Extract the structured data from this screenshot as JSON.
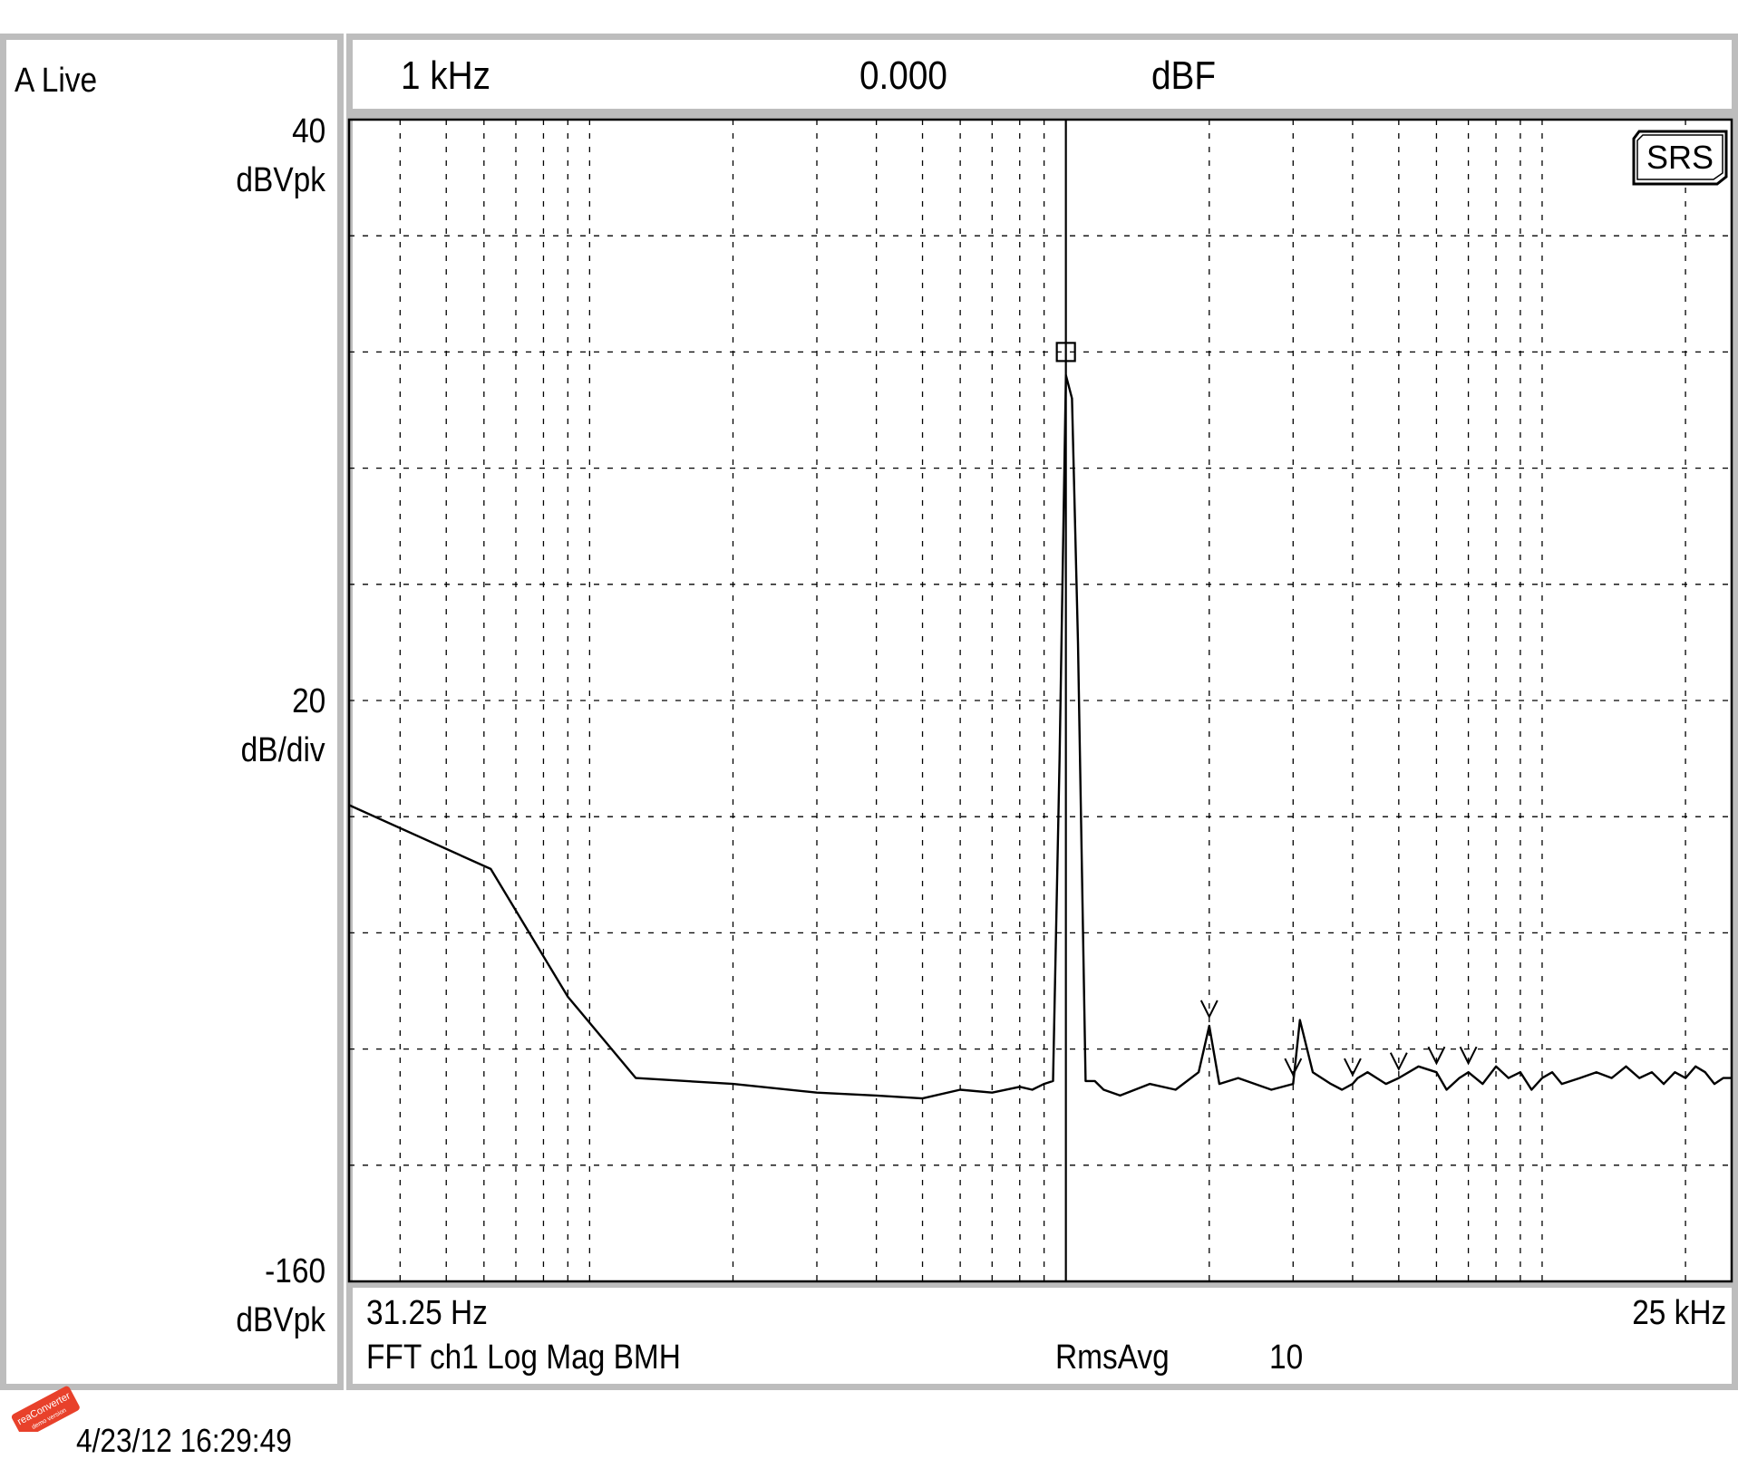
{
  "left_panel": {
    "trace_label": "A Live",
    "y_top_value": "40",
    "y_top_unit": "dBVpk",
    "y_mid_value": "20",
    "y_mid_unit": "dB/div",
    "y_bottom_value": "-160",
    "y_bottom_unit": "dBVpk"
  },
  "marker_bar": {
    "frequency": "1 kHz",
    "value": "0.000",
    "unit": "dBF"
  },
  "bottom_panel": {
    "start_freq": "31.25 Hz",
    "stop_freq": "25 kHz",
    "measurement": "FFT ch1 Log Mag BMH",
    "avg_mode": "RmsAvg",
    "avg_count": "10"
  },
  "timestamp": "4/23/12  16:29:49",
  "logo": {
    "text": "SRS"
  },
  "watermark": {
    "text": "reaConverter",
    "subtext": "demo version",
    "color": "#e8412b"
  },
  "chart_data": {
    "type": "line",
    "x_scale": "log",
    "xlim": [
      31.25,
      25000
    ],
    "ylim": [
      -160,
      40
    ],
    "y_per_div": 20,
    "grid": true,
    "cursor_x": 1000,
    "marker": {
      "x": 1000,
      "y": 0
    },
    "series": [
      {
        "x": [
          31.25,
          62,
          90,
          125,
          200,
          300,
          400,
          500,
          600,
          700,
          800,
          850,
          900,
          940,
          970,
          1000,
          1030,
          1060,
          1100,
          1150,
          1200,
          1300,
          1500,
          1700,
          1900,
          2000,
          2100,
          2300,
          2700,
          3000,
          3100,
          3300,
          3600,
          3800,
          4000,
          4100,
          4300,
          4700,
          5000,
          5500,
          6000,
          6300,
          6700,
          7000,
          7500,
          8000,
          8500,
          9000,
          9500,
          10000,
          10500,
          11000,
          12000,
          13000,
          14000,
          15000,
          16000,
          17000,
          18000,
          19000,
          20000,
          21000,
          22000,
          23000,
          24000,
          25000
        ],
        "y": [
          -78,
          -89,
          -111,
          -125,
          -126,
          -127.5,
          -128,
          -128.5,
          -127,
          -127.5,
          -126.5,
          -127,
          -126,
          -125.5,
          -70,
          -4,
          -8,
          -50,
          -125.5,
          -125.5,
          -127,
          -128,
          -126,
          -127,
          -124,
          -116,
          -126,
          -125,
          -127,
          -126,
          -115,
          -124,
          -126,
          -127,
          -126,
          -125,
          -124,
          -126,
          -125,
          -123,
          -124,
          -127,
          -125,
          -124,
          -126,
          -123,
          -125,
          -124,
          -127,
          -125,
          -124,
          -126,
          -125,
          -124,
          -125,
          -123,
          -125,
          -124,
          -126,
          -124,
          -125,
          -123,
          -124,
          -126,
          -125,
          -125
        ]
      }
    ],
    "spur_markers_hz": [
      2000,
      3000,
      4000,
      5000,
      6000,
      7000
    ]
  }
}
